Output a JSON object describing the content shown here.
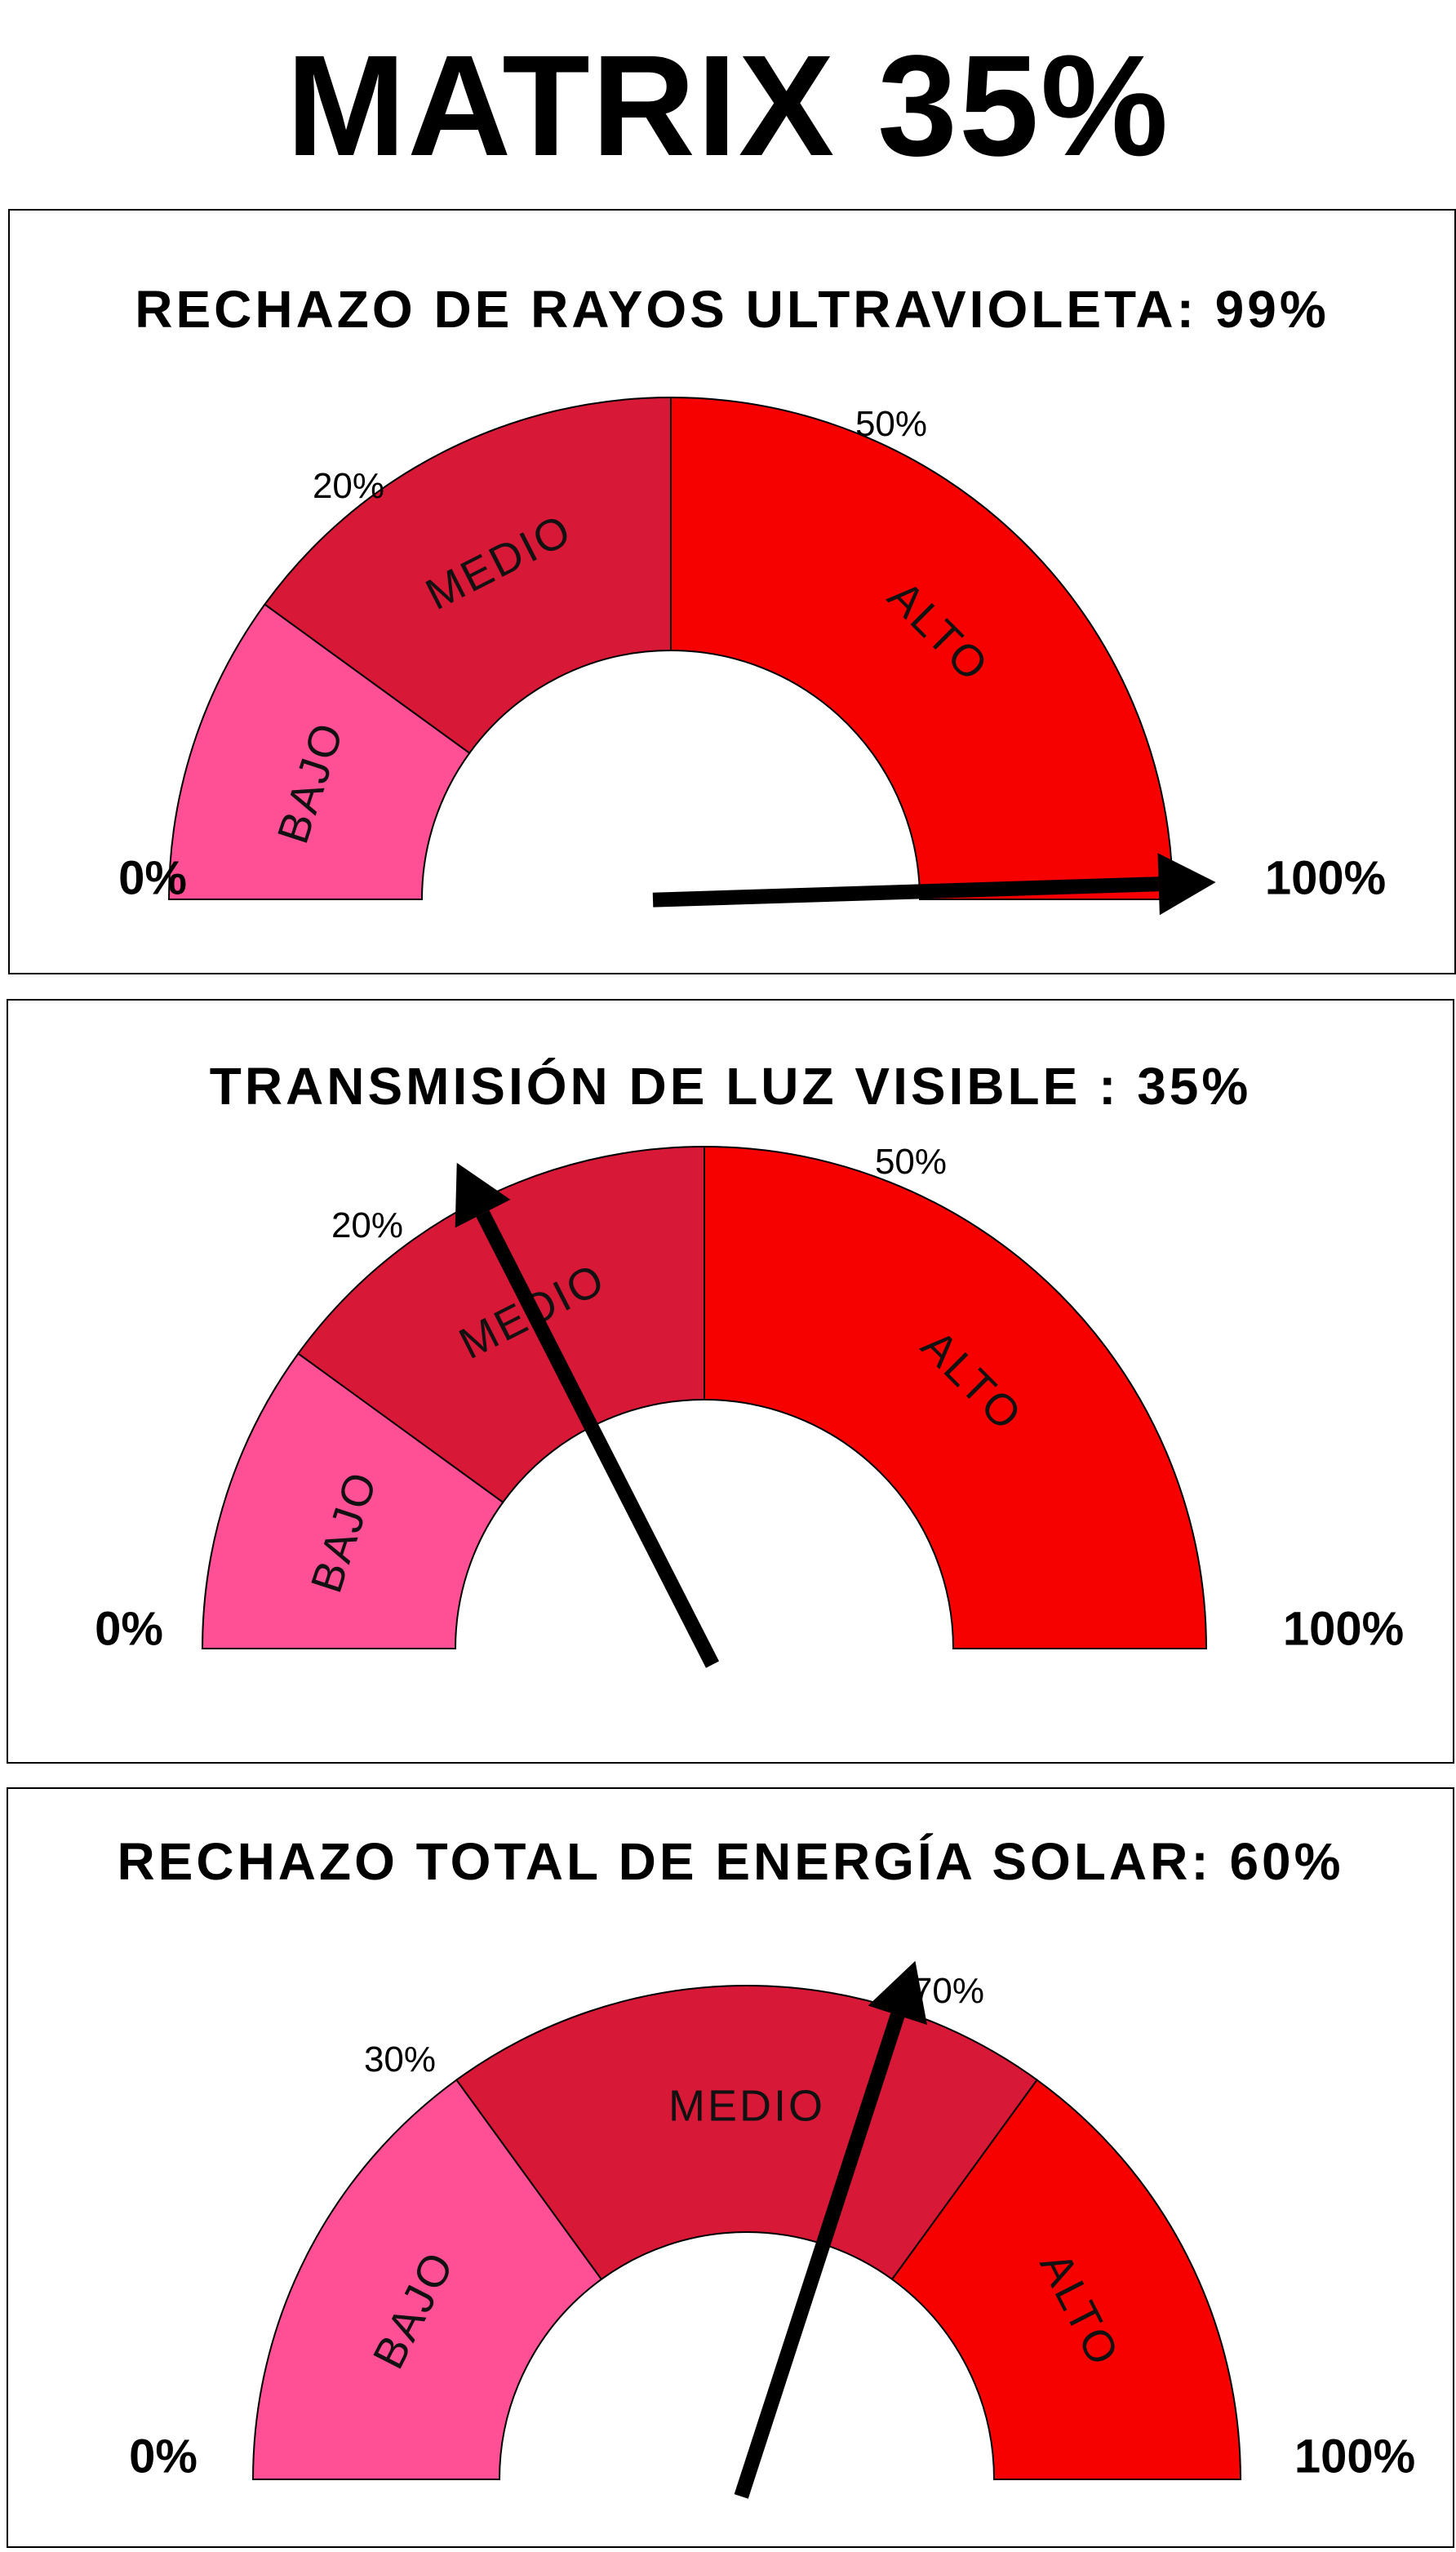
{
  "title": "MATRIX 35%",
  "chart_data": [
    {
      "type": "gauge",
      "title": "RECHAZO DE RAYOS ULTRAVIOLETA: 99%",
      "value": 99,
      "range": [
        0,
        100
      ],
      "min_label": "0%",
      "max_label": "100%",
      "thresholds": [
        20,
        50
      ],
      "threshold_labels": [
        "20%",
        "50%"
      ],
      "bands": [
        {
          "name": "BAJO",
          "from": 0,
          "to": 20,
          "color": "#FF5096"
        },
        {
          "name": "MEDIO",
          "from": 20,
          "to": 50,
          "color": "#D71837"
        },
        {
          "name": "ALTO",
          "from": 50,
          "to": 100,
          "color": "#F60000"
        }
      ]
    },
    {
      "type": "gauge",
      "title": "TRANSMISIÓN DE LUZ VISIBLE : 35%",
      "value": 35,
      "range": [
        0,
        100
      ],
      "min_label": "0%",
      "max_label": "100%",
      "thresholds": [
        20,
        50
      ],
      "threshold_labels": [
        "20%",
        "50%"
      ],
      "bands": [
        {
          "name": "BAJO",
          "from": 0,
          "to": 20,
          "color": "#FF5096"
        },
        {
          "name": "MEDIO",
          "from": 20,
          "to": 50,
          "color": "#D71837"
        },
        {
          "name": "ALTO",
          "from": 50,
          "to": 100,
          "color": "#F60000"
        }
      ]
    },
    {
      "type": "gauge",
      "title": "RECHAZO TOTAL DE ENERGÍA SOLAR: 60%",
      "value": 60,
      "range": [
        0,
        100
      ],
      "min_label": "0%",
      "max_label": "100%",
      "thresholds": [
        30,
        70
      ],
      "threshold_labels": [
        "30%",
        "70%"
      ],
      "bands": [
        {
          "name": "BAJO",
          "from": 0,
          "to": 30,
          "color": "#FF5096"
        },
        {
          "name": "MEDIO",
          "from": 30,
          "to": 70,
          "color": "#D71837"
        },
        {
          "name": "ALTO",
          "from": 70,
          "to": 100,
          "color": "#F60000"
        }
      ]
    }
  ]
}
